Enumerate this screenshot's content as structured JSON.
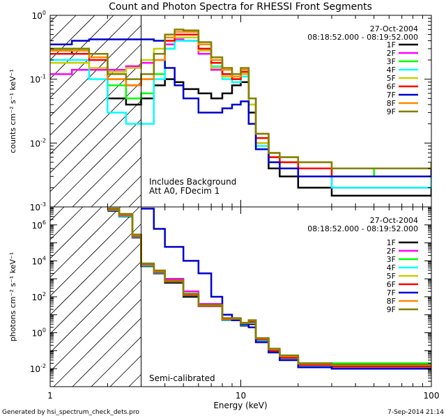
{
  "chart_data": {
    "title": "Count and Photon Spectra for RHESSI Front Segments",
    "footer_left": "Generated by hsi_spectrum_check_dets.pro",
    "footer_right": "7-Sep-2014 21:14",
    "xlabel": "Energy (keV)",
    "x_tick_labels": [
      "1",
      "10",
      "100"
    ],
    "legend": [
      {
        "name": "1F",
        "color": "#000000"
      },
      {
        "name": "2F",
        "color": "#ff00ff"
      },
      {
        "name": "3F",
        "color": "#00ff00"
      },
      {
        "name": "4F",
        "color": "#00ffff"
      },
      {
        "name": "5F",
        "color": "#cccc00"
      },
      {
        "name": "6F",
        "color": "#ff0000"
      },
      {
        "name": "7F",
        "color": "#0000cc"
      },
      {
        "name": "8F",
        "color": "#ff8800"
      },
      {
        "name": "9F",
        "color": "#808000"
      }
    ],
    "panels": [
      {
        "type": "line",
        "ylabel": "counts cm⁻² s⁻¹ keV⁻¹",
        "xlim": [
          1,
          100
        ],
        "ylim": [
          0.001,
          1
        ],
        "yscale": "log",
        "xscale": "log",
        "y_tick_labels": [
          {
            "base": "10",
            "exp": "-3"
          },
          {
            "base": "10",
            "exp": "-2"
          },
          {
            "base": "10",
            "exp": "-1"
          },
          {
            "base": "10",
            "exp": "0"
          }
        ],
        "date": "27-Oct-2004",
        "time_range": "08:18:52.000 - 08:19:52.000",
        "annotations": [
          "Includes Background",
          "Att A0, FDecim 1"
        ],
        "marker_line_x": 3,
        "series": [
          {
            "name": "1F",
            "x": [
              1,
              1.3,
              1.6,
              2,
              2.5,
              3,
              3.5,
              4,
              4.5,
              5,
              6,
              7,
              8,
              9,
              10,
              11,
              12,
              14,
              16,
              20,
              30,
              50,
              100
            ],
            "y": [
              0.28,
              0.25,
              0.14,
              0.05,
              0.04,
              0.05,
              0.08,
              0.1,
              0.09,
              0.07,
              0.06,
              0.05,
              0.06,
              0.08,
              0.09,
              0.03,
              0.008,
              0.004,
              0.003,
              0.002,
              0.0015,
              0.0015,
              0.002
            ]
          },
          {
            "name": "2F",
            "x": [
              1,
              1.3,
              1.6,
              2,
              2.5,
              3,
              3.5,
              4,
              4.5,
              5,
              6,
              7,
              8,
              9,
              10,
              11,
              12,
              14,
              16,
              20,
              30,
              50,
              100
            ],
            "y": [
              0.12,
              0.14,
              0.14,
              0.14,
              0.16,
              0.18,
              0.25,
              0.35,
              0.42,
              0.4,
              0.25,
              0.14,
              0.11,
              0.1,
              0.12,
              0.04,
              0.01,
              0.005,
              0.004,
              0.003,
              0.002,
              0.002,
              0.003
            ]
          },
          {
            "name": "3F",
            "x": [
              1,
              1.3,
              1.6,
              2,
              2.5,
              3,
              3.5,
              4,
              4.5,
              5,
              6,
              7,
              8,
              9,
              10,
              11,
              12,
              14,
              16,
              20,
              30,
              50,
              100
            ],
            "y": [
              0.3,
              0.3,
              0.22,
              0.08,
              0.05,
              0.06,
              0.12,
              0.3,
              0.45,
              0.45,
              0.3,
              0.2,
              0.12,
              0.1,
              0.13,
              0.05,
              0.012,
              0.006,
              0.005,
              0.004,
              0.004,
              0.003,
              0.004
            ]
          },
          {
            "name": "4F",
            "x": [
              1,
              1.3,
              1.6,
              2,
              2.5,
              3,
              3.5,
              4,
              4.5,
              5,
              6,
              7,
              8,
              9,
              10,
              11,
              12,
              14,
              16,
              20,
              30,
              50,
              100
            ],
            "y": [
              0.2,
              0.2,
              0.1,
              0.03,
              0.02,
              0.02,
              0.1,
              0.3,
              0.4,
              0.4,
              0.28,
              0.16,
              0.1,
              0.09,
              0.11,
              0.04,
              0.009,
              0.005,
              0.004,
              0.003,
              0.002,
              0.002,
              0.003
            ]
          },
          {
            "name": "5F",
            "x": [
              1,
              1.3,
              1.6,
              2,
              2.5,
              3,
              3.5,
              4,
              4.5,
              5,
              6,
              7,
              8,
              9,
              10,
              11,
              12,
              14,
              16,
              20,
              30,
              50,
              100
            ],
            "y": [
              0.18,
              0.18,
              0.15,
              0.13,
              0.15,
              0.2,
              0.3,
              0.4,
              0.45,
              0.45,
              0.28,
              0.15,
              0.11,
              0.1,
              0.12,
              0.04,
              0.01,
              0.006,
              0.005,
              0.004,
              0.003,
              0.003,
              0.004
            ]
          },
          {
            "name": "6F",
            "x": [
              1,
              1.3,
              1.6,
              2,
              2.5,
              3,
              3.5,
              4,
              4.5,
              5,
              6,
              7,
              8,
              9,
              10,
              11,
              12,
              14,
              16,
              20,
              30,
              50,
              100
            ],
            "y": [
              0.25,
              0.25,
              0.2,
              0.1,
              0.08,
              0.1,
              0.2,
              0.4,
              0.5,
              0.5,
              0.3,
              0.18,
              0.12,
              0.1,
              0.13,
              0.05,
              0.012,
              0.006,
              0.005,
              0.004,
              0.003,
              0.003,
              0.004
            ]
          },
          {
            "name": "7F",
            "x": [
              1,
              1.3,
              1.6,
              2,
              2.5,
              3,
              3.5,
              4,
              4.5,
              5,
              6,
              7,
              8,
              9,
              10,
              11,
              12,
              14,
              16,
              20,
              30,
              50,
              100
            ],
            "y": [
              0.35,
              0.4,
              0.42,
              0.42,
              0.42,
              0.42,
              0.4,
              0.15,
              0.08,
              0.05,
              0.03,
              0.03,
              0.035,
              0.04,
              0.045,
              0.02,
              0.008,
              0.005,
              0.004,
              0.003,
              0.003,
              0.003,
              0.004
            ]
          },
          {
            "name": "8F",
            "x": [
              1,
              1.3,
              1.6,
              2,
              2.5,
              3,
              3.5,
              4,
              4.5,
              5,
              6,
              7,
              8,
              9,
              10,
              11,
              12,
              14,
              16,
              20,
              30,
              50,
              100
            ],
            "y": [
              0.28,
              0.28,
              0.22,
              0.1,
              0.08,
              0.1,
              0.2,
              0.45,
              0.55,
              0.55,
              0.35,
              0.2,
              0.14,
              0.11,
              0.14,
              0.05,
              0.014,
              0.007,
              0.006,
              0.005,
              0.004,
              0.004,
              0.005
            ]
          },
          {
            "name": "9F",
            "x": [
              1,
              1.3,
              1.6,
              2,
              2.5,
              3,
              3.5,
              4,
              4.5,
              5,
              6,
              7,
              8,
              9,
              10,
              11,
              12,
              14,
              16,
              20,
              30,
              50,
              100
            ],
            "y": [
              0.3,
              0.3,
              0.25,
              0.12,
              0.1,
              0.12,
              0.25,
              0.5,
              0.6,
              0.58,
              0.38,
              0.22,
              0.15,
              0.12,
              0.15,
              0.05,
              0.014,
              0.007,
              0.006,
              0.005,
              0.004,
              0.004,
              0.005
            ]
          }
        ]
      },
      {
        "type": "line",
        "ylabel": "photons cm⁻² s⁻¹ keV⁻¹",
        "xlim": [
          1,
          100
        ],
        "ylim": [
          0.001,
          10000000
        ],
        "yscale": "log",
        "xscale": "log",
        "y_tick_labels": [
          {
            "base": "10",
            "exp": "-2"
          },
          {
            "base": "10",
            "exp": "0"
          },
          {
            "base": "10",
            "exp": "2"
          },
          {
            "base": "10",
            "exp": "4"
          },
          {
            "base": "10",
            "exp": "6"
          }
        ],
        "date": "27-Oct-2004",
        "time_range": "08:18:52.000 - 08:19:52.000",
        "annotations": [
          "Semi-calibrated"
        ],
        "marker_line_x": 3,
        "series": [
          {
            "name": "1F",
            "x": [
              2,
              2.3,
              2.7,
              3,
              3.5,
              4,
              5,
              6,
              8,
              10,
              11,
              12,
              14,
              16,
              20,
              30,
              50,
              100
            ],
            "y": [
              6000000,
              3000000,
              200000,
              5000,
              2000,
              600,
              100,
              30,
              5,
              2.5,
              3,
              0.3,
              0.08,
              0.03,
              0.012,
              0.01,
              0.01,
              0.01
            ]
          },
          {
            "name": "2F",
            "x": [
              2,
              2.3,
              2.7,
              3,
              3.5,
              4,
              5,
              6,
              8,
              10,
              11,
              12,
              14,
              16,
              20,
              30,
              50,
              100
            ],
            "y": [
              7000000,
              3500000,
              250000,
              6000,
              2500,
              1000,
              200,
              40,
              6,
              3,
              4,
              0.4,
              0.1,
              0.04,
              0.015,
              0.012,
              0.012,
              0.012
            ]
          },
          {
            "name": "3F",
            "x": [
              2,
              2.3,
              2.7,
              3,
              3.5,
              4,
              5,
              6,
              8,
              10,
              11,
              12,
              14,
              16,
              20,
              30,
              50,
              100
            ],
            "y": [
              8000000,
              4000000,
              280000,
              7000,
              2800,
              800,
              150,
              35,
              6,
              3.5,
              5,
              0.5,
              0.12,
              0.05,
              0.02,
              0.02,
              0.02,
              0.02
            ]
          },
          {
            "name": "4F",
            "x": [
              2,
              2.3,
              2.7,
              3,
              3.5,
              4,
              5,
              6,
              8,
              10,
              11,
              12,
              14,
              16,
              20,
              30,
              50,
              100
            ],
            "y": [
              6500000,
              3200000,
              220000,
              5500,
              2200,
              700,
              120,
              30,
              5,
              2.8,
              3.5,
              0.35,
              0.09,
              0.035,
              0.013,
              0.011,
              0.011,
              0.011
            ]
          },
          {
            "name": "5F",
            "x": [
              2,
              2.3,
              2.7,
              3,
              3.5,
              4,
              5,
              6,
              8,
              10,
              11,
              12,
              14,
              16,
              20,
              30,
              50,
              100
            ],
            "y": [
              7500000,
              3800000,
              260000,
              6500,
              2600,
              750,
              130,
              32,
              6,
              3.2,
              4.5,
              0.45,
              0.11,
              0.045,
              0.018,
              0.015,
              0.015,
              0.015
            ]
          },
          {
            "name": "6F",
            "x": [
              2,
              2.3,
              2.7,
              3,
              3.5,
              4,
              5,
              6,
              8,
              10,
              11,
              12,
              14,
              16,
              20,
              30,
              50,
              100
            ],
            "y": [
              7000000,
              3600000,
              240000,
              6200,
              2400,
              720,
              125,
              31,
              5.5,
              3,
              4,
              0.42,
              0.1,
              0.04,
              0.016,
              0.013,
              0.013,
              0.013
            ]
          },
          {
            "name": "7F",
            "x": [
              3,
              3.5,
              4,
              5,
              6,
              7,
              8,
              9,
              10,
              11,
              12,
              14,
              16,
              20,
              30,
              50,
              100
            ],
            "y": [
              8000000,
              600000,
              60000,
              10000,
              2000,
              100,
              10,
              5,
              3,
              2,
              0.3,
              0.08,
              0.03,
              0.012,
              0.01,
              0.01,
              0.01
            ]
          },
          {
            "name": "8F",
            "x": [
              2,
              2.3,
              2.7,
              3,
              3.5,
              4,
              5,
              6,
              8,
              10,
              11,
              12,
              14,
              16,
              20,
              30,
              50,
              100
            ],
            "y": [
              7800000,
              3900000,
              270000,
              6800,
              2700,
              780,
              140,
              34,
              6,
              3.4,
              4.8,
              0.48,
              0.12,
              0.05,
              0.019,
              0.016,
              0.016,
              0.016
            ]
          },
          {
            "name": "9F",
            "x": [
              2,
              2.3,
              2.7,
              3,
              3.5,
              4,
              5,
              6,
              8,
              10,
              11,
              12,
              14,
              16,
              20,
              30,
              50,
              100
            ],
            "y": [
              8200000,
              4100000,
              290000,
              7200,
              2900,
              820,
              145,
              36,
              6.5,
              3.6,
              5,
              0.5,
              0.13,
              0.055,
              0.02,
              0.017,
              0.017,
              0.017
            ]
          }
        ]
      }
    ]
  }
}
